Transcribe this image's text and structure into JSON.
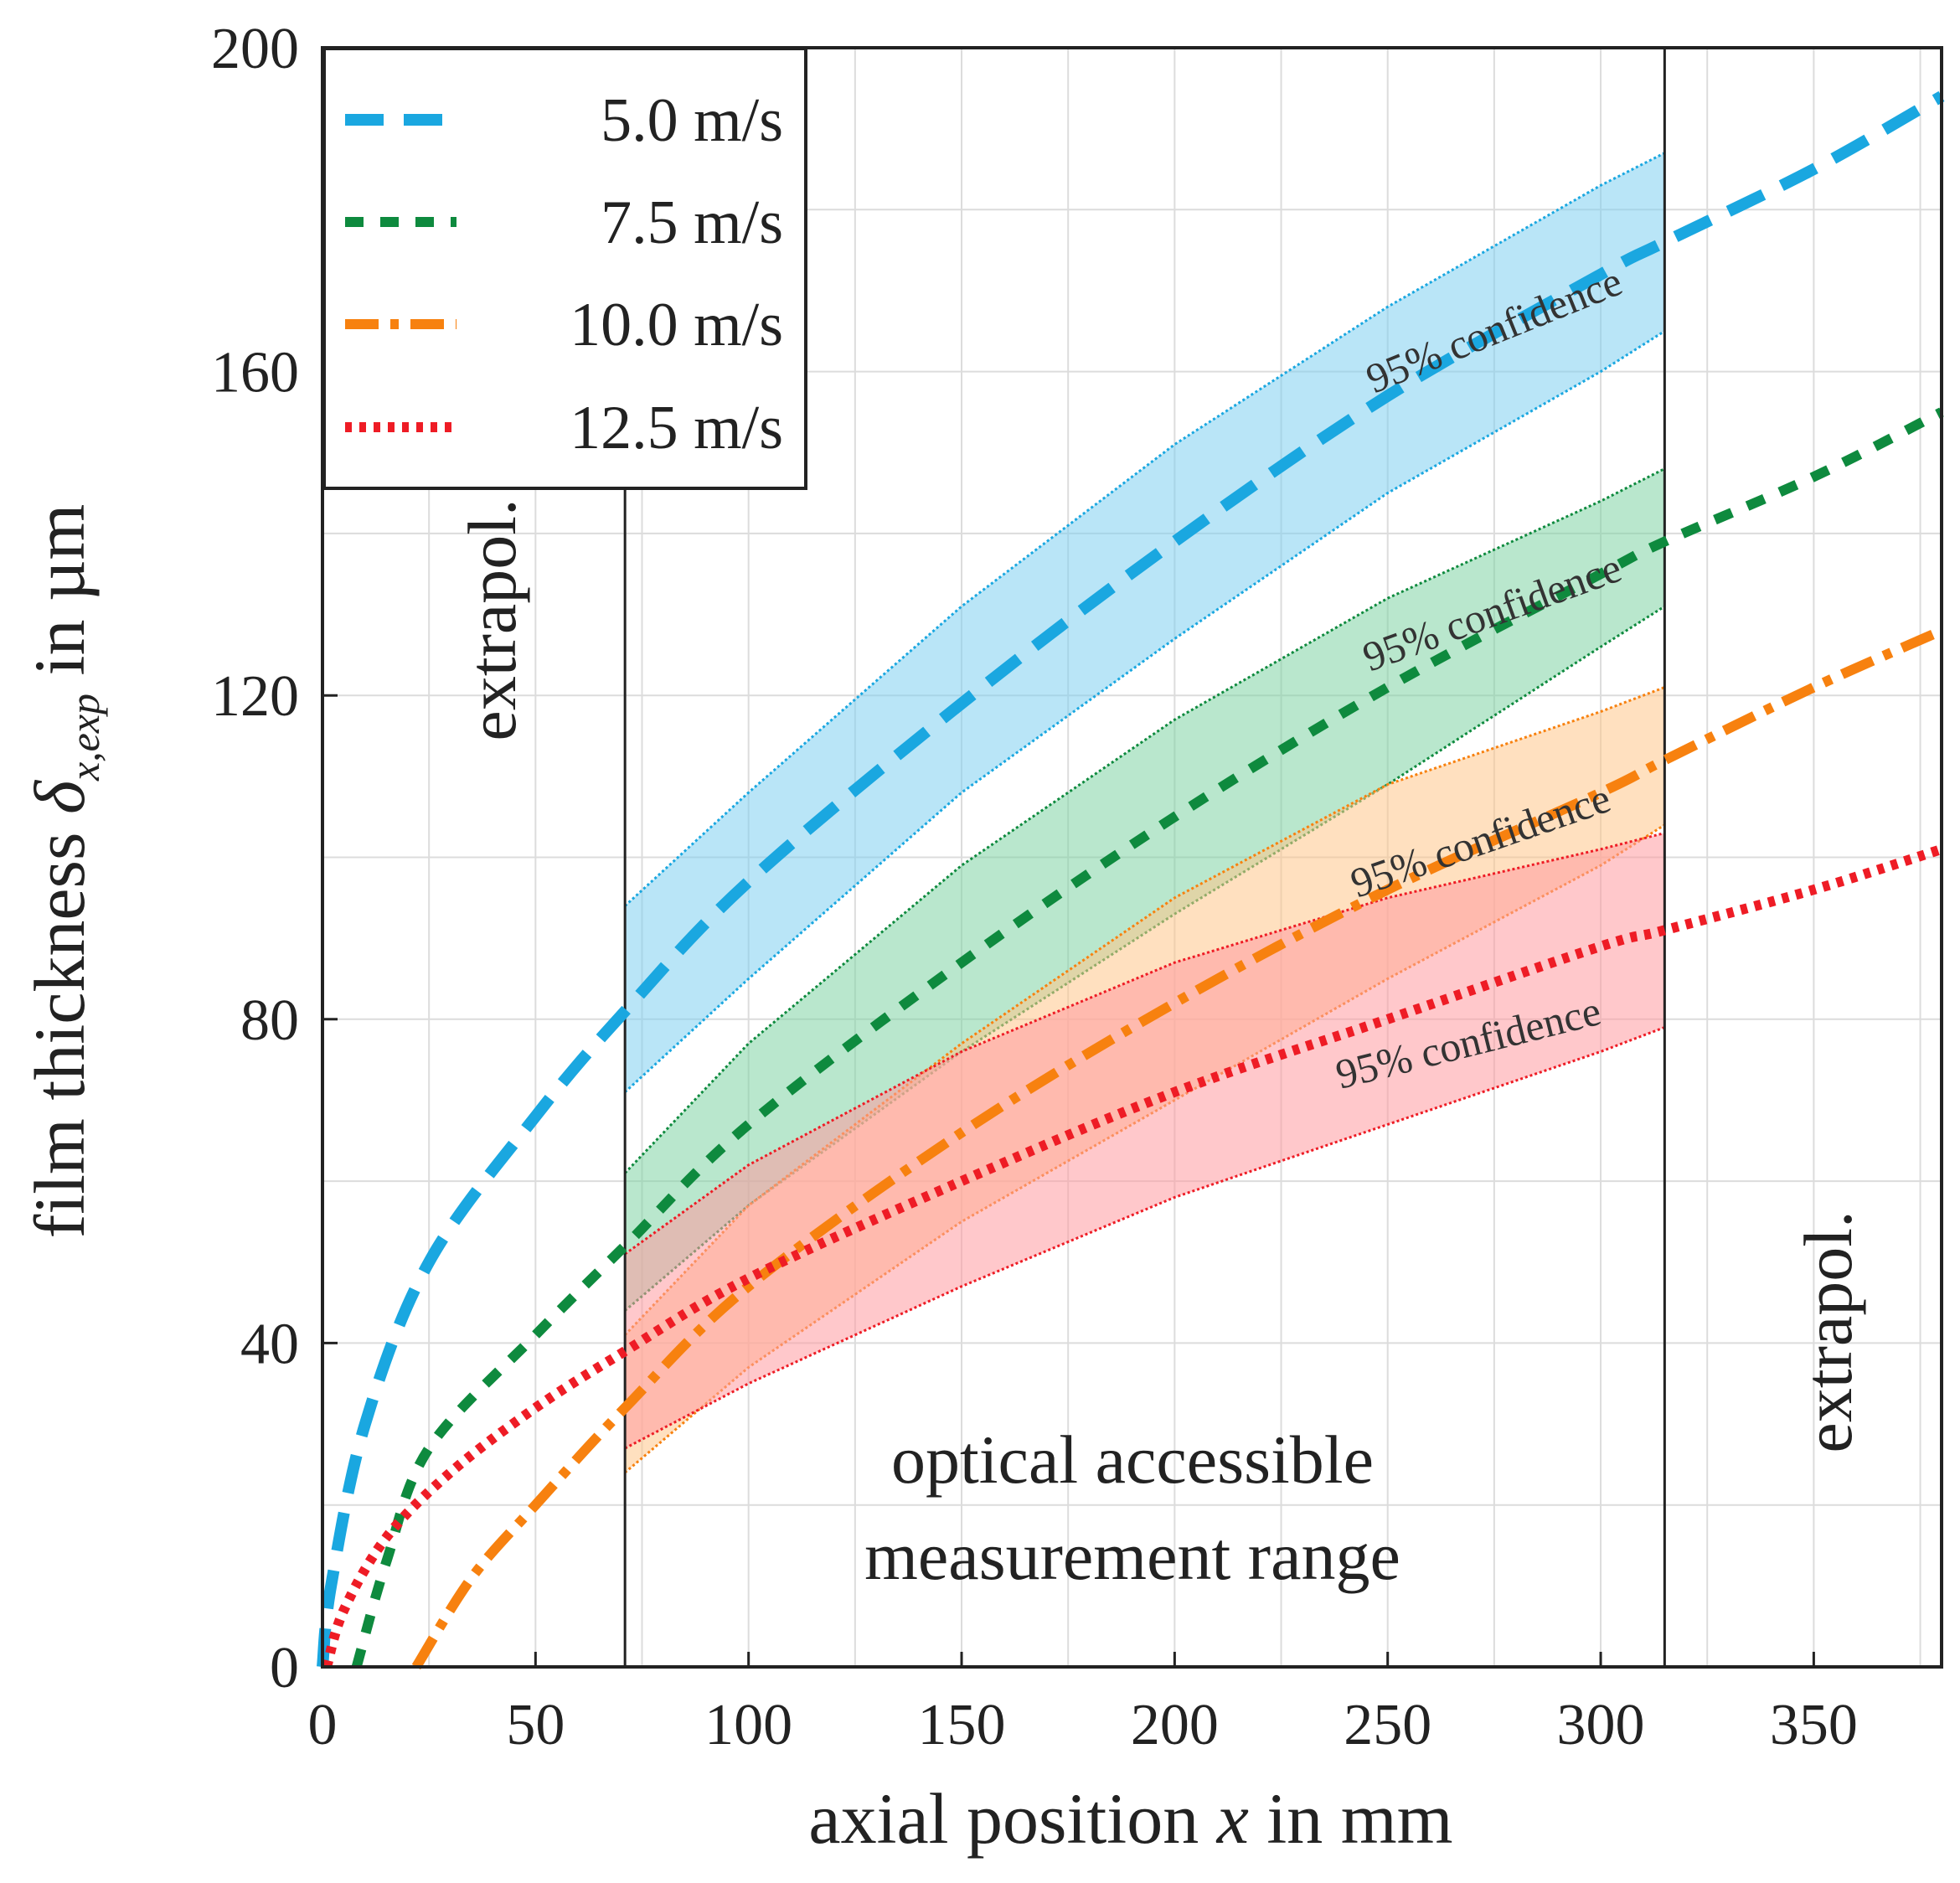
{
  "chart_data": {
    "type": "line",
    "title": "",
    "xlabel": "axial position x in mm",
    "ylabel": "film thickness δ_x,exp in µm",
    "xlabel_parts": {
      "pre": "axial position ",
      "var": "x",
      "post": " in mm"
    },
    "ylabel_parts": {
      "pre": "film thickness ",
      "var": "δ",
      "sub": "x,exp",
      "post": " in µm"
    },
    "xlim": [
      0,
      380
    ],
    "ylim": [
      0,
      200
    ],
    "xticks": [
      0,
      50,
      100,
      150,
      200,
      250,
      300,
      350
    ],
    "yticks": [
      0,
      40,
      80,
      120,
      160,
      200
    ],
    "grid": true,
    "measurement_range": [
      71,
      315
    ],
    "legend_position": "top-left",
    "x": [
      0,
      10,
      25,
      50,
      71,
      100,
      150,
      200,
      250,
      300,
      315,
      350,
      380
    ],
    "series": [
      {
        "name": "5.0 m/s",
        "color": "#1aa7e0",
        "style": "long-dash",
        "points": [
          [
            0,
            0
          ],
          [
            2,
            10
          ],
          [
            10,
            30
          ],
          [
            25,
            50
          ],
          [
            50,
            68
          ],
          [
            71,
            81
          ],
          [
            100,
            97
          ],
          [
            150,
            119
          ],
          [
            200,
            139
          ],
          [
            250,
            157
          ],
          [
            300,
            172
          ],
          [
            315,
            176
          ],
          [
            350,
            185
          ],
          [
            380,
            194
          ]
        ],
        "band_upper": [
          [
            71,
            94
          ],
          [
            100,
            108
          ],
          [
            150,
            131
          ],
          [
            200,
            151
          ],
          [
            250,
            168
          ],
          [
            300,
            183
          ],
          [
            315,
            187
          ]
        ],
        "band_lower": [
          [
            71,
            71
          ],
          [
            100,
            85
          ],
          [
            150,
            108
          ],
          [
            200,
            127
          ],
          [
            250,
            145
          ],
          [
            300,
            160
          ],
          [
            315,
            165
          ]
        ],
        "band_color": "#7fd0f0"
      },
      {
        "name": "7.5 m/s",
        "color": "#0e8a3e",
        "style": "short-dash",
        "points": [
          [
            8,
            0
          ],
          [
            15,
            13
          ],
          [
            25,
            27
          ],
          [
            50,
            41
          ],
          [
            71,
            52
          ],
          [
            100,
            67
          ],
          [
            150,
            87
          ],
          [
            200,
            105
          ],
          [
            250,
            121
          ],
          [
            300,
            135
          ],
          [
            315,
            139
          ],
          [
            350,
            147
          ],
          [
            380,
            155
          ]
        ],
        "band_upper": [
          [
            71,
            61
          ],
          [
            100,
            77
          ],
          [
            150,
            99
          ],
          [
            200,
            117
          ],
          [
            250,
            132
          ],
          [
            300,
            144
          ],
          [
            315,
            148
          ]
        ],
        "band_lower": [
          [
            71,
            44
          ],
          [
            100,
            57
          ],
          [
            150,
            76
          ],
          [
            200,
            93
          ],
          [
            250,
            109
          ],
          [
            300,
            126
          ],
          [
            315,
            131
          ]
        ],
        "band_color": "#7fd4a4"
      },
      {
        "name": "10.0 m/s",
        "color": "#f7810f",
        "style": "dash-dot",
        "points": [
          [
            22,
            0
          ],
          [
            35,
            11
          ],
          [
            50,
            20
          ],
          [
            71,
            32
          ],
          [
            100,
            47
          ],
          [
            150,
            66
          ],
          [
            200,
            82
          ],
          [
            250,
            96
          ],
          [
            300,
            108
          ],
          [
            315,
            112
          ],
          [
            350,
            121
          ],
          [
            380,
            128
          ]
        ],
        "band_upper": [
          [
            71,
            41
          ],
          [
            100,
            57
          ],
          [
            150,
            77
          ],
          [
            200,
            95
          ],
          [
            250,
            109
          ],
          [
            300,
            118
          ],
          [
            315,
            121
          ]
        ],
        "band_lower": [
          [
            71,
            24
          ],
          [
            100,
            37
          ],
          [
            150,
            55
          ],
          [
            200,
            70
          ],
          [
            250,
            85
          ],
          [
            300,
            99
          ],
          [
            315,
            104
          ]
        ],
        "band_color": "#ffc68a"
      },
      {
        "name": "12.5 m/s",
        "color": "#ee1c25",
        "style": "dotted",
        "points": [
          [
            1,
            0
          ],
          [
            5,
            7
          ],
          [
            15,
            16
          ],
          [
            30,
            24
          ],
          [
            50,
            32
          ],
          [
            71,
            39
          ],
          [
            100,
            48
          ],
          [
            150,
            60
          ],
          [
            200,
            71
          ],
          [
            250,
            80
          ],
          [
            300,
            89
          ],
          [
            315,
            91
          ],
          [
            350,
            96
          ],
          [
            380,
            101
          ]
        ],
        "band_upper": [
          [
            71,
            51
          ],
          [
            100,
            62
          ],
          [
            150,
            76
          ],
          [
            200,
            87
          ],
          [
            250,
            95
          ],
          [
            300,
            101
          ],
          [
            315,
            103
          ]
        ],
        "band_lower": [
          [
            71,
            27
          ],
          [
            100,
            35
          ],
          [
            150,
            47
          ],
          [
            200,
            58
          ],
          [
            250,
            67
          ],
          [
            300,
            76
          ],
          [
            315,
            79
          ]
        ],
        "band_color": "#ff9aa0"
      }
    ],
    "annotations": {
      "confidence": [
        "95% confidence",
        "95% confidence",
        "95% confidence",
        "95% confidence"
      ],
      "extrapol_left": "extrapol.",
      "extrapol_right": "extrapol.",
      "measurement_line1": "optical accessible",
      "measurement_line2": "measurement range"
    }
  }
}
